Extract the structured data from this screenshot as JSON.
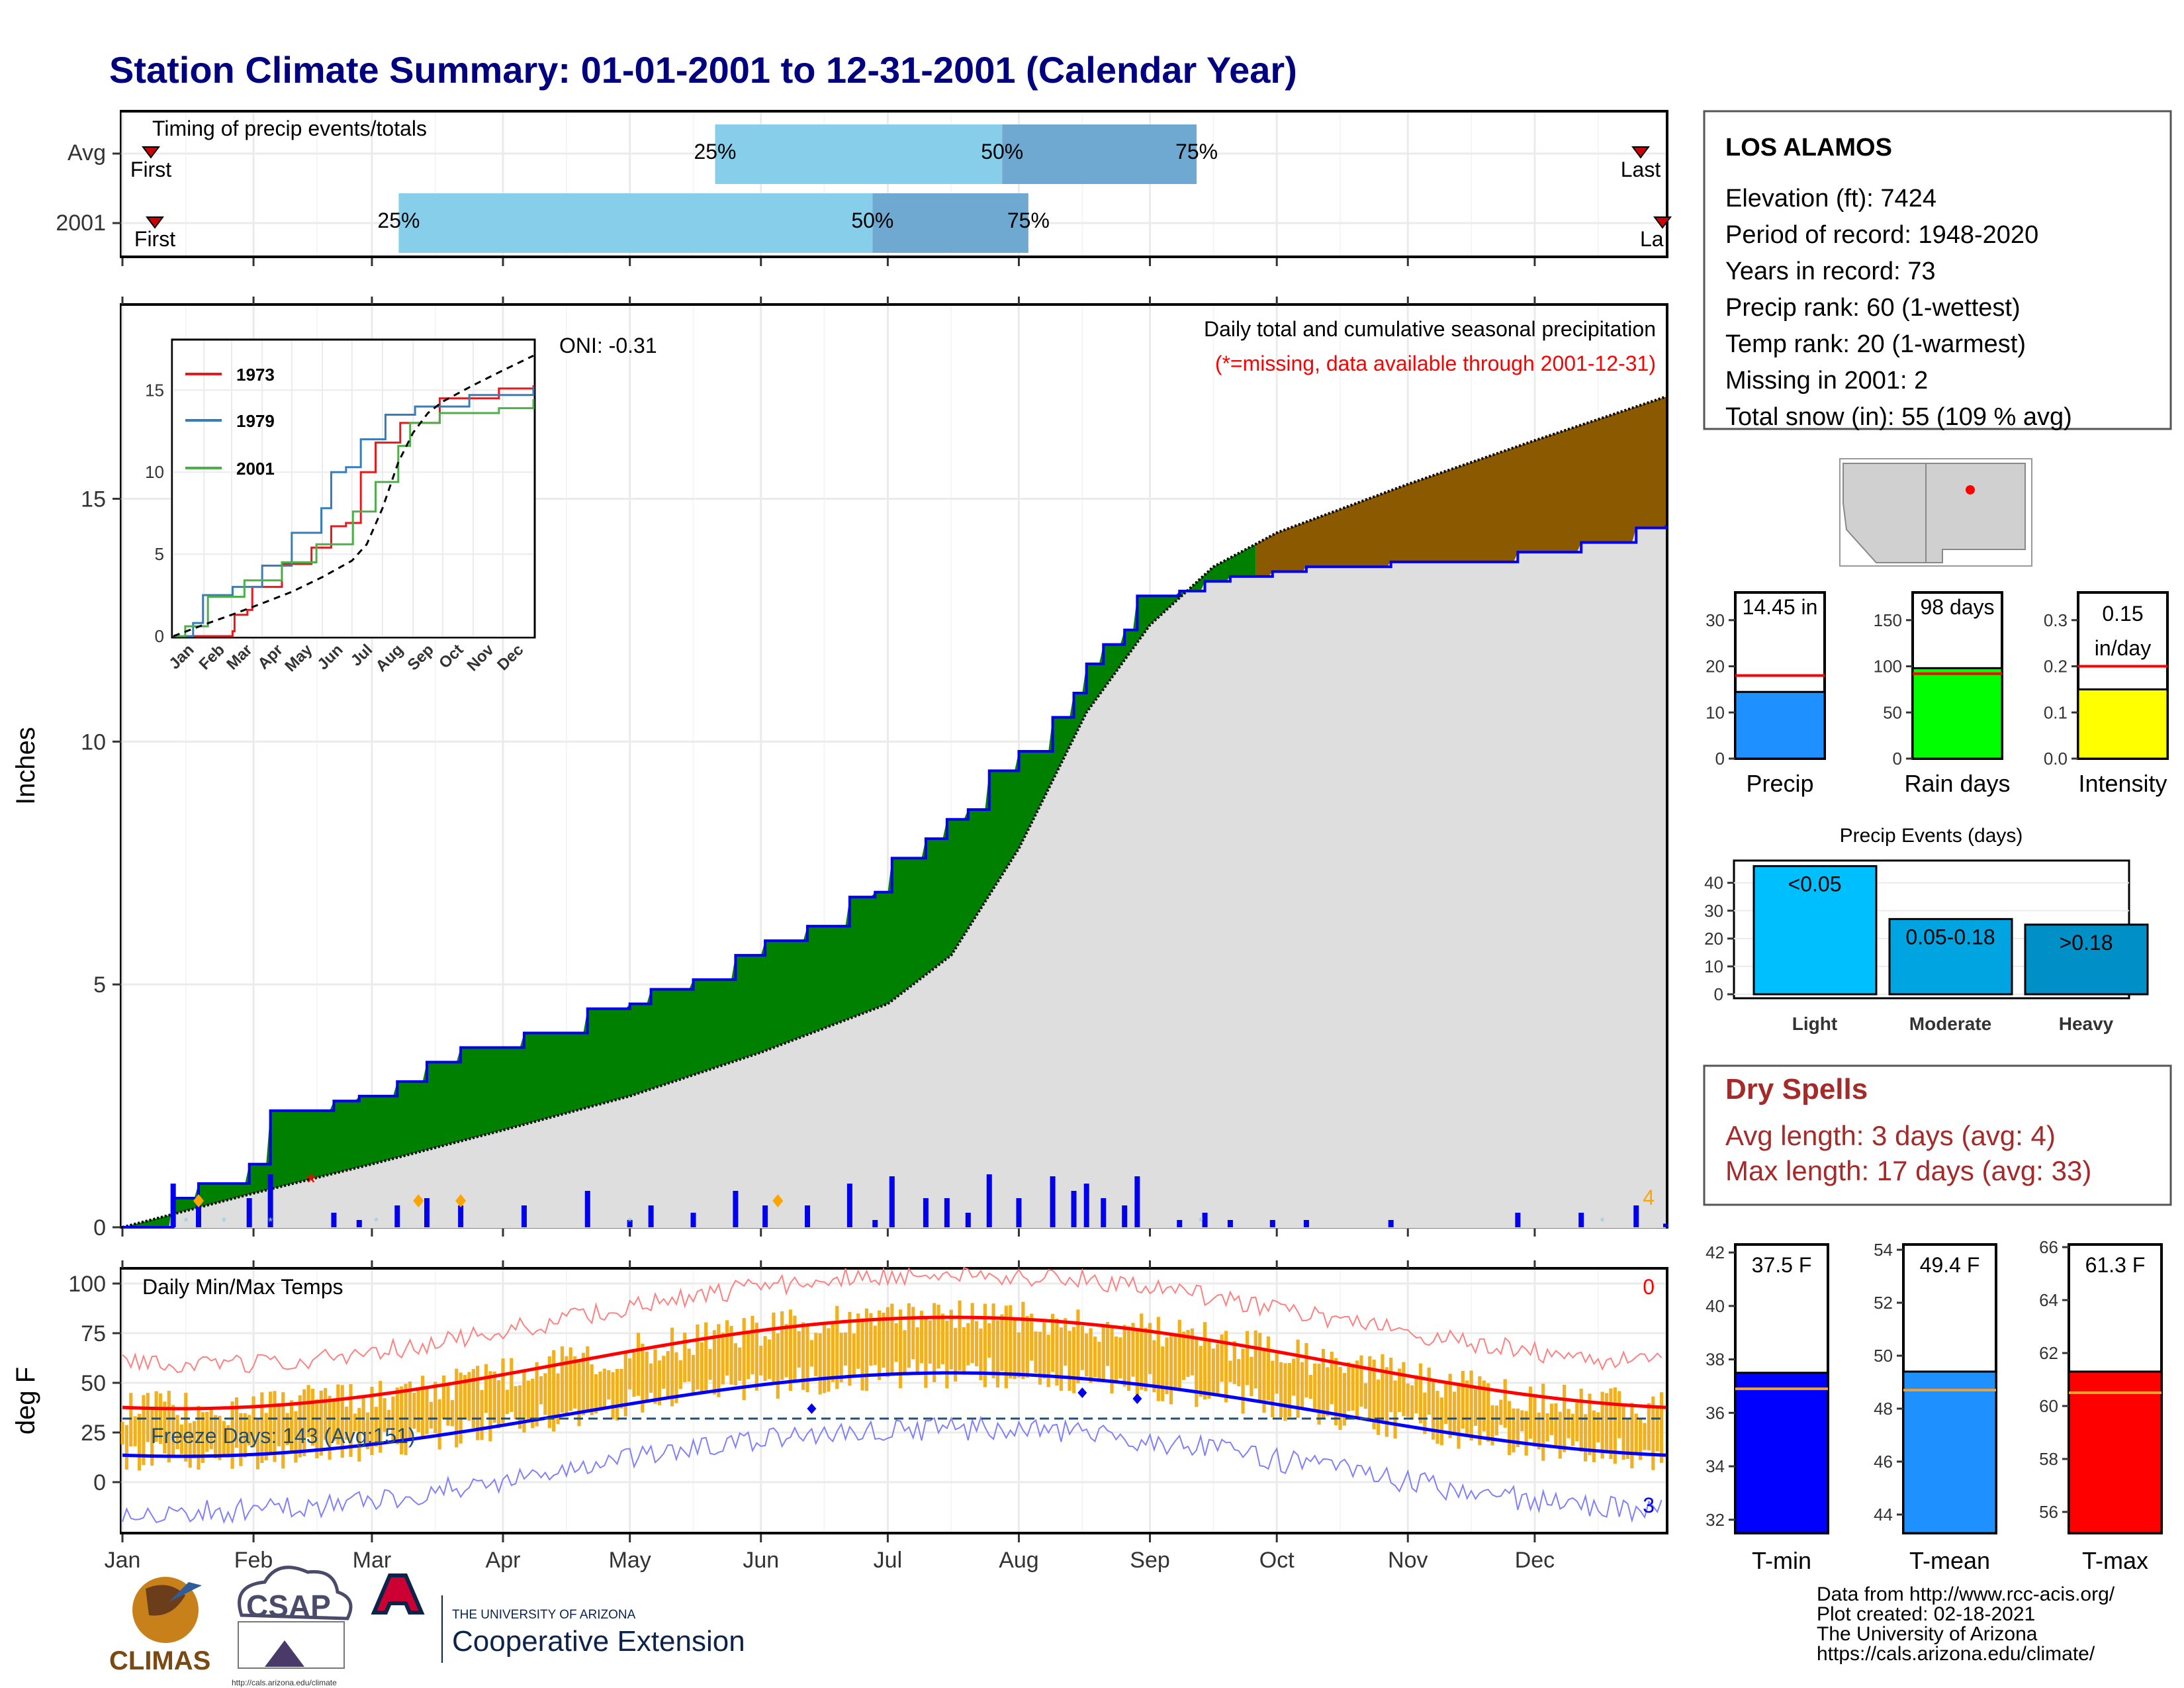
{
  "title": "Station Climate Summary: 01-01-2001 to 12-31-2001 (Calendar Year)",
  "colors": {
    "title": "#000080",
    "light_blue": "#87ceeb",
    "mid_blue": "#6fa8d0",
    "above_avg": "#008000",
    "below_avg": "#8b5a00",
    "normal_fill": "#dedede",
    "obs_line": "#0000ee",
    "dry_spells": "#a52a2a",
    "temp_bar": "#f0b020",
    "tmax_avg": "#ff0000",
    "tmin_avg": "#0000ff"
  },
  "timing": {
    "title": "Timing of precip events/totals",
    "rows": [
      {
        "label": "Avg",
        "first_label": "First",
        "last_label": "Last",
        "p25": 0.384,
        "p50": 0.57,
        "p75": 0.696
      },
      {
        "label": "2001",
        "first_label": "First",
        "last_label": "La",
        "p25": 0.179,
        "p50": 0.486,
        "p75": 0.587
      }
    ],
    "pct_labels": [
      "25%",
      "50%",
      "75%"
    ]
  },
  "precip": {
    "ylabel": "Inches",
    "title": "Daily total and cumulative seasonal precipitation",
    "missing_note": "(*=missing, data available through 2001-12-31)",
    "oni": "ONI: -0.31",
    "corner_count": "4",
    "y_ticks": [
      "0",
      "5",
      "10",
      "15"
    ],
    "ylim": [
      0,
      19
    ]
  },
  "inset": {
    "series": [
      {
        "name": "1973",
        "color": "#e41a1c"
      },
      {
        "name": "1979",
        "color": "#377eb8"
      },
      {
        "name": "2001",
        "color": "#4daf4a"
      }
    ],
    "y_ticks": [
      "0",
      "5",
      "10",
      "15"
    ],
    "months": [
      "Jan",
      "Feb",
      "Mar",
      "Apr",
      "May",
      "Jun",
      "Jul",
      "Aug",
      "Sep",
      "Oct",
      "Nov",
      "Dec"
    ]
  },
  "temps": {
    "ylabel": "deg F",
    "title": "Daily Min/Max Temps",
    "freeze": "Freeze Days: 143 (Avg:151)",
    "count_top": "0",
    "count_bottom": "3",
    "y_ticks": [
      "0",
      "25",
      "50",
      "75",
      "100"
    ]
  },
  "months": [
    "Jan",
    "Feb",
    "Mar",
    "Apr",
    "May",
    "Jun",
    "Jul",
    "Aug",
    "Sep",
    "Oct",
    "Nov",
    "Dec"
  ],
  "station": {
    "name": "LOS ALAMOS",
    "lines": [
      "Elevation (ft): 7424",
      "Period of record: 1948-2020",
      "Years in record: 73",
      "Precip rank: 60 (1-wettest)",
      "Temp rank: 20 (1-warmest)",
      "Missing in 2001: 2",
      "Total snow (in): 55 (109 % avg)"
    ]
  },
  "stat_bars": [
    {
      "name": "Precip",
      "label": "14.45 in",
      "value": 14.45,
      "avg": 18,
      "max": 36,
      "ticks": [
        "0",
        "10",
        "20",
        "30"
      ],
      "color": "#1e90ff"
    },
    {
      "name": "Rain days",
      "label": "98 days",
      "value": 98,
      "avg": 92,
      "max": 180,
      "ticks": [
        "0",
        "50",
        "100",
        "150"
      ],
      "color": "#00ff00"
    },
    {
      "name": "Intensity",
      "label": "0.15 in/day",
      "value": 0.15,
      "avg": 0.2,
      "max": 0.36,
      "ticks": [
        "0.0",
        "0.1",
        "0.2",
        "0.3"
      ],
      "color": "#ffff00"
    }
  ],
  "events": {
    "title": "Precip Events (days)",
    "categories": [
      "Light",
      "Moderate",
      "Heavy"
    ],
    "labels": [
      "<0.05",
      "0.05-0.18",
      ">0.18"
    ],
    "values": [
      46,
      27,
      25
    ],
    "ticks": [
      "0",
      "10",
      "20",
      "30",
      "40"
    ],
    "colors": [
      "#00bfff",
      "#00a4e0",
      "#0090c8"
    ]
  },
  "dry_spells": {
    "title": "Dry Spells",
    "line1": "Avg length: 3 days (avg: 4)",
    "line2": "Max length: 17 days (avg: 33)"
  },
  "temp_bars": [
    {
      "name": "T-min",
      "label": "37.5 F",
      "value": 37.5,
      "avg": 36.9,
      "min": 31.5,
      "max": 42.3,
      "ticks": [
        "32",
        "34",
        "36",
        "38",
        "40",
        "42"
      ],
      "color": "#0000ff"
    },
    {
      "name": "T-mean",
      "label": "49.4 F",
      "value": 49.4,
      "avg": 48.7,
      "min": 43.3,
      "max": 54.2,
      "ticks": [
        "44",
        "46",
        "48",
        "50",
        "52",
        "54"
      ],
      "color": "#1e90ff"
    },
    {
      "name": "T-max",
      "label": "61.3 F",
      "value": 61.3,
      "avg": 60.5,
      "min": 55.2,
      "max": 66.1,
      "ticks": [
        "56",
        "58",
        "60",
        "62",
        "64",
        "66"
      ],
      "color": "#ff0000"
    }
  ],
  "footer": {
    "credits": [
      "Data from http://www.rcc-acis.org/",
      "Plot created: 02-18-2021",
      "The University of Arizona",
      "https://cals.arizona.edu/climate/"
    ],
    "climas": "CLIMAS",
    "csap": "CSAP",
    "csap_url": "http://cals.arizona.edu/climate",
    "ua_small": "THE UNIVERSITY OF ARIZONA",
    "ua_big": "Cooperative Extension"
  }
}
